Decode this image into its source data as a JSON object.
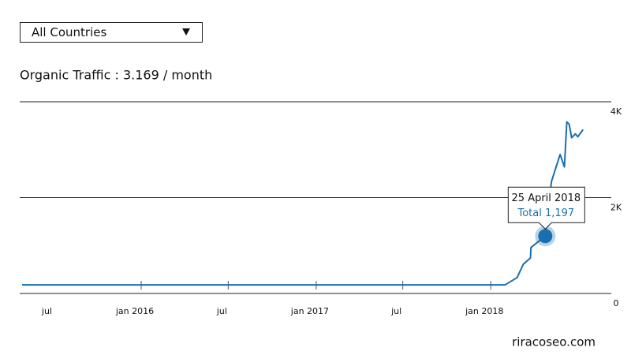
{
  "dropdown": {
    "selected": "All Countries"
  },
  "footer": "riracoseo.com",
  "chart_data": {
    "type": "line",
    "title": "Organic Traffic : 3.169 / month",
    "series": [
      {
        "name": "Total",
        "color": "#1a6fb0",
        "x": [
          "2015-04-27",
          "2018-01-31",
          "2018-02-25",
          "2018-03-10",
          "2018-03-25",
          "2018-03-26",
          "2018-04-25",
          "2018-05-08",
          "2018-05-26",
          "2018-06-04",
          "2018-06-09",
          "2018-06-14",
          "2018-06-19",
          "2018-06-27",
          "2018-07-02",
          "2018-07-13"
        ],
        "values": [
          180,
          180,
          330,
          610,
          740,
          960,
          1197,
          2340,
          2900,
          2640,
          3580,
          3530,
          3250,
          3330,
          3270,
          3420
        ]
      }
    ],
    "xlim": [
      "2015-04-22",
      "2018-09-10"
    ],
    "xticks": [
      {
        "value": "2015-07-01",
        "label": "jul"
      },
      {
        "value": "2016-01-01",
        "label": "jan 2016"
      },
      {
        "value": "2016-07-01",
        "label": "jul"
      },
      {
        "value": "2017-01-01",
        "label": "jan 2017"
      },
      {
        "value": "2017-07-01",
        "label": "jul"
      },
      {
        "value": "2018-01-01",
        "label": "jan 2018"
      }
    ],
    "ylim": [
      0,
      4000
    ],
    "yticks": [
      0,
      {
        "value": 2000,
        "label": "2K"
      },
      {
        "value": 4000,
        "label": "4K"
      }
    ],
    "grid": true,
    "tooltip": {
      "date": "25 April 2018",
      "label": "Total 1,197",
      "point": 6
    }
  }
}
